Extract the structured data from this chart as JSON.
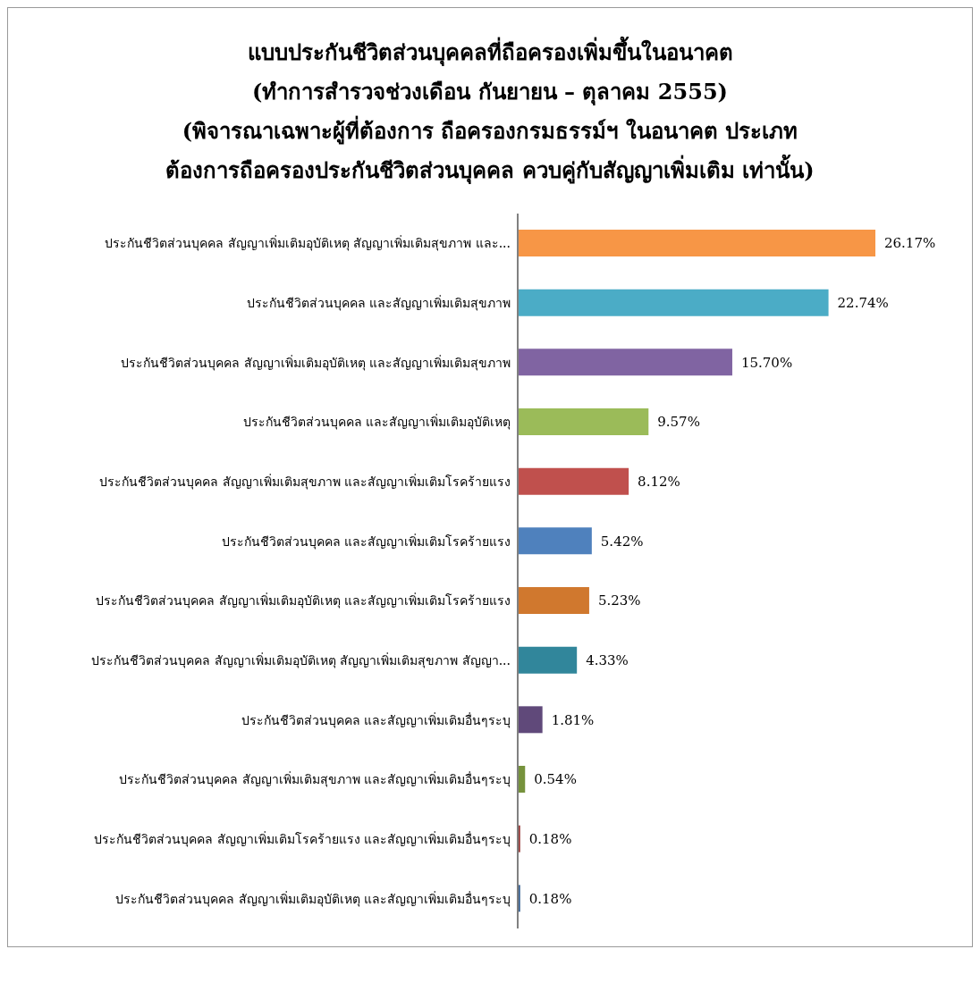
{
  "chart_data": {
    "type": "bar",
    "orientation": "horizontal",
    "title": "แบบประกันชีวิตส่วนบุคคลที่ถือครองเพิ่มขึ้นในอนาคต\n(ทำการสำรวจช่วงเดือน กันยายน – ตุลาคม 2555)\n(พิจารณาเฉพาะผู้ที่ต้องการ ถือครองกรมธรรม์ฯ  ในอนาคต ประเภท\nต้องการถือครองประกันชีวิตส่วนบุคคล  ควบคู่กับสัญญาเพิ่มเติม  เท่านั้น)",
    "categories": [
      "ประกันชีวิตส่วนบุคคล  สัญญาเพิ่มเติมอุบัติเหตุ  สัญญาเพิ่มเติมสุขภาพ  และ...",
      "ประกันชีวิตส่วนบุคคล  และสัญญาเพิ่มเติมสุขภาพ",
      "ประกันชีวิตส่วนบุคคล  สัญญาเพิ่มเติมอุบัติเหตุ  และสัญญาเพิ่มเติมสุขภาพ",
      "ประกันชีวิตส่วนบุคคล  และสัญญาเพิ่มเติมอุบัติเหตุ",
      "ประกันชีวิตส่วนบุคคล  สัญญาเพิ่มเติมสุขภาพ  และสัญญาเพิ่มเติมโรคร้ายแรง",
      "ประกันชีวิตส่วนบุคคล  และสัญญาเพิ่มเติมโรคร้ายแรง",
      "ประกันชีวิตส่วนบุคคล  สัญญาเพิ่มเติมอุบัติเหตุ  และสัญญาเพิ่มเติมโรคร้ายแรง",
      "ประกันชีวิตส่วนบุคคล  สัญญาเพิ่มเติมอุบัติเหตุ  สัญญาเพิ่มเติมสุขภาพ  สัญญา...",
      "ประกันชีวิตส่วนบุคคล  และสัญญาเพิ่มเติมอื่นๆระบุ",
      "ประกันชีวิตส่วนบุคคล  สัญญาเพิ่มเติมสุขภาพ  และสัญญาเพิ่มเติมอื่นๆระบุ",
      "ประกันชีวิตส่วนบุคคล  สัญญาเพิ่มเติมโรคร้ายแรง  และสัญญาเพิ่มเติมอื่นๆระบุ",
      "ประกันชีวิตส่วนบุคคล  สัญญาเพิ่มเติมอุบัติเหตุ  และสัญญาเพิ่มเติมอื่นๆระบุ"
    ],
    "values": [
      26.17,
      22.74,
      15.7,
      9.57,
      8.12,
      5.42,
      5.23,
      4.33,
      1.81,
      0.54,
      0.18,
      0.18
    ],
    "colors": [
      "#f79646",
      "#4bacc6",
      "#8064a2",
      "#9bbb59",
      "#c0504d",
      "#4f81bd",
      "#d0782e",
      "#31869b",
      "#60497a",
      "#76923c",
      "#953735",
      "#366092"
    ],
    "value_labels": [
      "26.17%",
      "22.74%",
      "15.70%",
      "9.57%",
      "8.12%",
      "5.42%",
      "5.23%",
      "4.33%",
      "1.81%",
      "0.54%",
      "0.18%",
      "0.18%"
    ],
    "tick_labels": "y"
  }
}
